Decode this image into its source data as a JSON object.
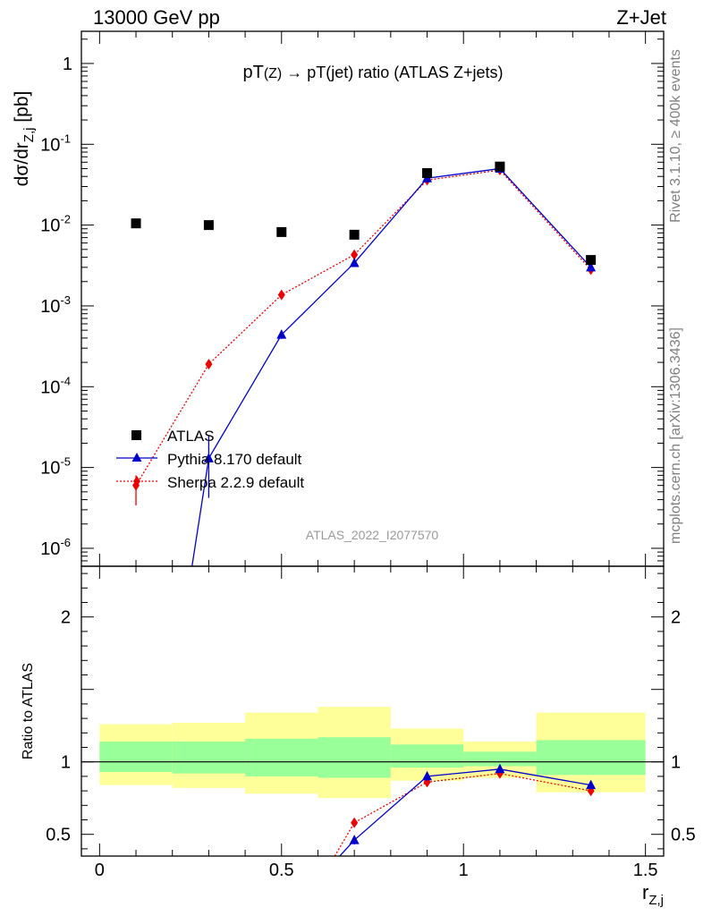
{
  "header": {
    "energy_label": "13000 GeV pp",
    "process_label": "Z+Jet"
  },
  "side_text": {
    "rivet": "Rivet 3.1.10, ≥ 400k events",
    "mcplots": "mcplots.cern.ch [arXiv:1306.3436]"
  },
  "watermark": "ATLAS_2022_I2077570",
  "chart_data": [
    {
      "type": "scatter",
      "panel": "main",
      "title": "pT(Z) → pT(jet) ratio (ATLAS Z+jets)",
      "title_parts": {
        "pt_a": "pT",
        "paren_a": "(Z)",
        "arrow": " → ",
        "pt_b": "pT(jet) ratio (ATLAS Z+jets)"
      },
      "ylabel": "dσ/dr_{Z,j} [pb]",
      "ylabel_parts": {
        "main": "dσ/dr",
        "sub": "Z,j",
        "unit": " [pb]"
      },
      "yscale": "log",
      "ylim": [
        6e-07,
        2.5
      ],
      "xlim": [
        -0.05,
        1.55
      ],
      "ytick_labels": [
        {
          "base": "10",
          "exp": "-6",
          "value": 1e-06
        },
        {
          "base": "10",
          "exp": "-5",
          "value": 1e-05
        },
        {
          "base": "10",
          "exp": "-4",
          "value": 0.0001
        },
        {
          "base": "10",
          "exp": "-3",
          "value": 0.001
        },
        {
          "base": "10",
          "exp": "-2",
          "value": 0.01
        },
        {
          "base": "10",
          "exp": "-1",
          "value": 0.1
        },
        {
          "base": "1",
          "exp": "",
          "value": 1
        }
      ],
      "legend": {
        "position": "lower-left",
        "entries": [
          "ATLAS",
          "Pythia 8.170 default",
          "Sherpa 2.2.9 default"
        ]
      },
      "series": [
        {
          "name": "ATLAS",
          "color": "#000000",
          "marker": "square",
          "x": [
            0.1,
            0.3,
            0.5,
            0.7,
            0.9,
            1.1,
            1.35
          ],
          "y": [
            0.0105,
            0.01,
            0.0082,
            0.0076,
            0.044,
            0.053,
            0.0037
          ]
        },
        {
          "name": "Pythia 8.170 default",
          "color": "#0000cc",
          "marker": "triangle",
          "line": "solid",
          "x": [
            0.3,
            0.5,
            0.7,
            0.9,
            1.1,
            1.35
          ],
          "y": [
            1.3e-05,
            0.00044,
            0.0034,
            0.038,
            0.05,
            0.003
          ],
          "err_low": [
            4.2e-06,
            0.00039,
            0.0032,
            0.036,
            0.048,
            0.0028
          ],
          "err_high": [
            2.5e-05,
            0.0005,
            0.0036,
            0.04,
            0.052,
            0.0032
          ],
          "tail_start": {
            "x": 0.254,
            "y": 6e-07
          }
        },
        {
          "name": "Sherpa 2.2.9 default",
          "color": "#ee0000",
          "marker": "diamond",
          "line": "dotted",
          "x": [
            0.1,
            0.3,
            0.5,
            0.7,
            0.9,
            1.1,
            1.35
          ],
          "y": [
            6e-06,
            0.00019,
            0.00137,
            0.0043,
            0.036,
            0.048,
            0.0028
          ],
          "err_low": [
            3.4e-06,
            0.000185,
            0.00133,
            0.0042,
            0.035,
            0.047,
            0.0027
          ],
          "err_high": [
            8e-06,
            0.000195,
            0.00141,
            0.0044,
            0.037,
            0.049,
            0.0029
          ]
        }
      ]
    },
    {
      "type": "scatter",
      "panel": "ratio",
      "ylabel": "Ratio to ATLAS",
      "xlabel": "r_{Z,j}",
      "xlabel_parts": {
        "main": "r",
        "sub": "Z,j"
      },
      "xlim": [
        -0.05,
        1.55
      ],
      "ylim": [
        0.35,
        2.35
      ],
      "xtick_labels": [
        "0",
        "0.5",
        "1",
        "1.5"
      ],
      "xtick_values": [
        0,
        0.5,
        1,
        1.5
      ],
      "ytick_labels": [
        "0.5",
        "1",
        "2"
      ],
      "ytick_values": [
        0.5,
        1,
        2
      ],
      "reference_line": 1,
      "bands": {
        "edges": [
          0.0,
          0.2,
          0.4,
          0.6,
          0.8,
          1.0,
          1.2,
          1.5
        ],
        "inner_lo": [
          0.93,
          0.92,
          0.9,
          0.89,
          0.96,
          0.97,
          0.91
        ],
        "inner_hi": [
          1.14,
          1.14,
          1.16,
          1.17,
          1.12,
          1.07,
          1.15
        ],
        "outer_lo": [
          0.84,
          0.82,
          0.78,
          0.75,
          0.87,
          0.89,
          0.79
        ],
        "outer_hi": [
          1.26,
          1.27,
          1.34,
          1.38,
          1.23,
          1.14,
          1.34
        ],
        "inner_color": "#99ff99",
        "outer_color": "#ffff99"
      },
      "series": [
        {
          "name": "Pythia 8.170 default",
          "color": "#0000cc",
          "marker": "triangle",
          "line": "solid",
          "x": [
            0.7,
            0.9,
            1.1,
            1.35
          ],
          "y": [
            0.46,
            0.9,
            0.95,
            0.84
          ],
          "err_low": [
            0.43,
            0.89,
            0.94,
            0.82
          ],
          "err_high": [
            0.49,
            0.91,
            0.96,
            0.86
          ],
          "tail_start": {
            "x": 0.66,
            "y": 0.35
          }
        },
        {
          "name": "Sherpa 2.2.9 default",
          "color": "#ee0000",
          "marker": "diamond",
          "line": "dotted",
          "x": [
            0.7,
            0.9,
            1.1,
            1.35
          ],
          "y": [
            0.58,
            0.86,
            0.92,
            0.8
          ],
          "tail_start": {
            "x": 0.646,
            "y": 0.35
          }
        }
      ]
    }
  ]
}
